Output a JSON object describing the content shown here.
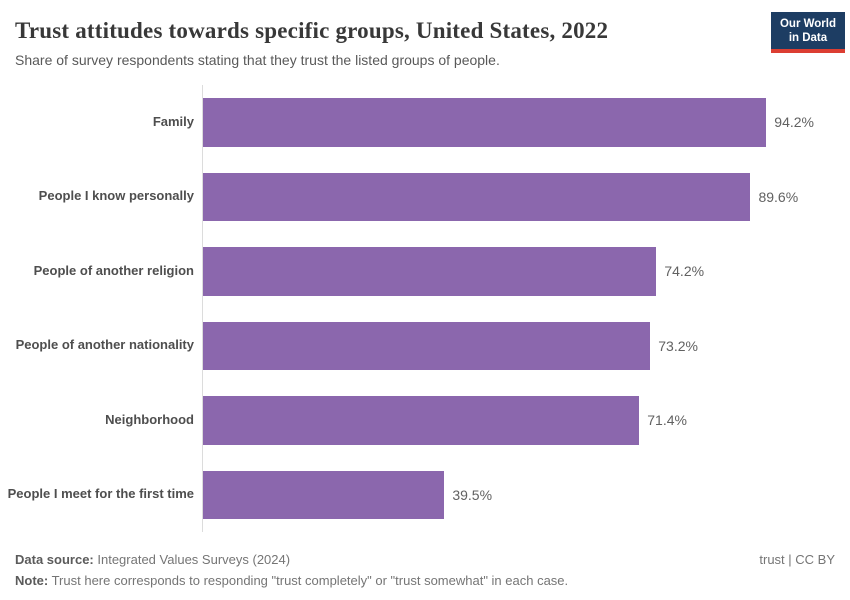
{
  "header": {
    "title": "Trust attitudes towards specific groups, United States, 2022",
    "subtitle": "Share of survey respondents stating that they trust the listed groups of people.",
    "logo": {
      "line1": "Our World",
      "line2": "in Data"
    }
  },
  "chart_data": {
    "type": "bar",
    "orientation": "horizontal",
    "title": "Trust attitudes towards specific groups, United States, 2022",
    "categories": [
      "Family",
      "People I know personally",
      "People of another religion",
      "People of another nationality",
      "Neighborhood",
      "People I meet for the first time"
    ],
    "values": [
      94.2,
      89.6,
      74.2,
      73.2,
      71.4,
      39.5
    ],
    "value_labels": [
      "94.2%",
      "89.6%",
      "74.2%",
      "73.2%",
      "71.4%",
      "39.5%"
    ],
    "xlabel": "",
    "ylabel": "",
    "xlim": [
      0,
      100
    ],
    "grid": false,
    "legend": "none",
    "bar_color": "#8B67AD"
  },
  "footer": {
    "data_source_label": "Data source:",
    "data_source_value": " Integrated Values Surveys (2024)",
    "note_label": "Note:",
    "note_value": " Trust here corresponds to responding \"trust completely\" or \"trust somewhat\" in each case.",
    "license": "trust | CC BY"
  },
  "colors": {
    "bar": "#8B67AD",
    "logo_background": "#1d3d63",
    "logo_accent_red": "#dc3e32",
    "axis_line": "#dcdcdc"
  }
}
